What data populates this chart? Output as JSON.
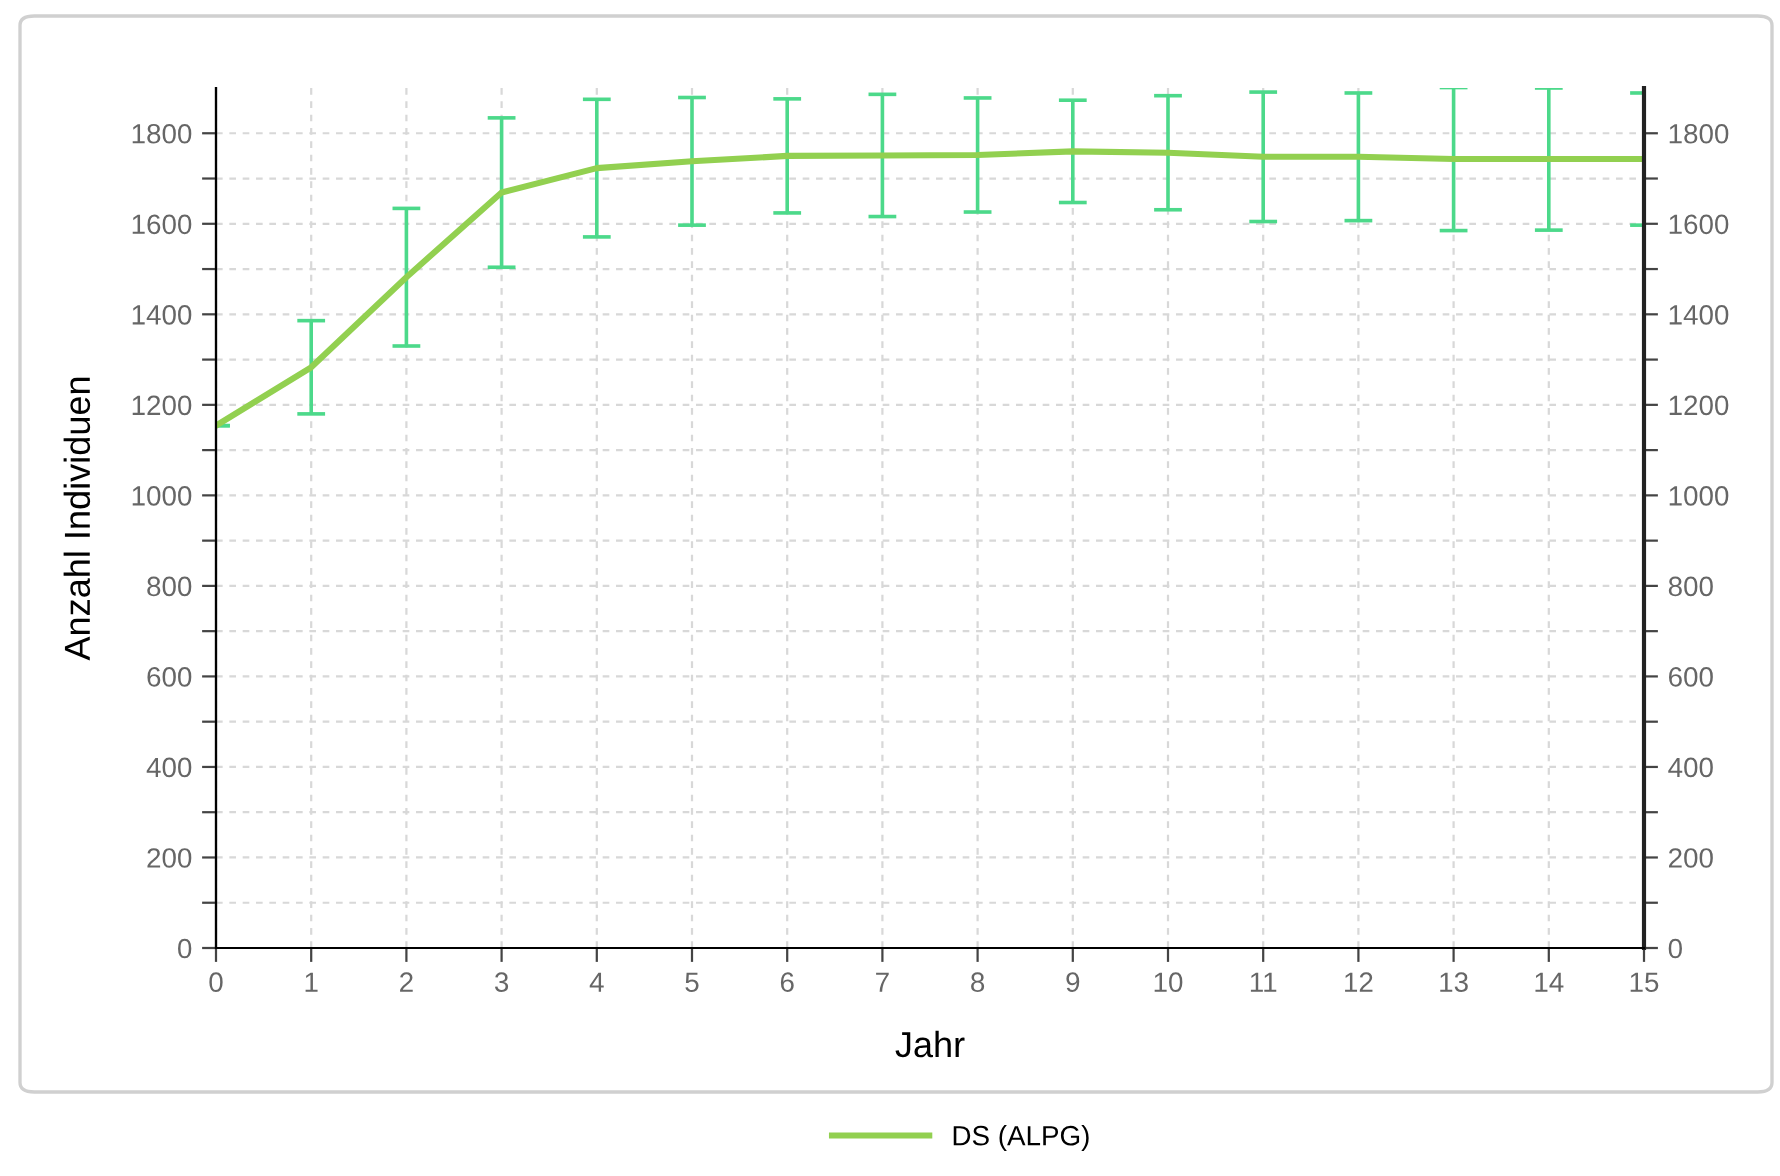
{
  "chart_data": {
    "type": "line",
    "xlabel": "Jahr",
    "ylabel": "Anzahl Individuen",
    "x": [
      0,
      1,
      2,
      3,
      4,
      5,
      6,
      7,
      8,
      9,
      10,
      11,
      12,
      13,
      14,
      15
    ],
    "series": [
      {
        "name": "DS (ALPG)",
        "color": "#92d050",
        "values": [
          1154,
          1283,
          1482,
          1669,
          1723,
          1738,
          1750,
          1751,
          1752,
          1760,
          1757,
          1748,
          1748,
          1743,
          1743,
          1743
        ],
        "errors": [
          0,
          103,
          152,
          165,
          152,
          141,
          126,
          135,
          126,
          113,
          126,
          143,
          141,
          158,
          157,
          146
        ]
      }
    ],
    "xlim": [
      0,
      15
    ],
    "xticks": [
      0,
      1,
      2,
      3,
      4,
      5,
      6,
      7,
      8,
      9,
      10,
      11,
      12,
      13,
      14,
      15
    ],
    "ylim": [
      0,
      1900
    ],
    "yticks": [
      0,
      {
        "value": 100,
        "label": null
      },
      200,
      {
        "value": 300,
        "label": null
      },
      400,
      {
        "value": 500,
        "label": null
      },
      600,
      {
        "value": 700,
        "label": null
      },
      800,
      {
        "value": 900,
        "label": null
      },
      1000,
      {
        "value": 1100,
        "label": null
      },
      1200,
      {
        "value": 1300,
        "label": null
      },
      1400,
      {
        "value": 1500,
        "label": null
      },
      1600,
      {
        "value": 1700,
        "label": null
      },
      1800
    ],
    "y2lim": [
      0,
      1900
    ],
    "y2ticks": [
      0,
      {
        "value": 100,
        "label": null
      },
      200,
      {
        "value": 300,
        "label": null
      },
      400,
      {
        "value": 500,
        "label": null
      },
      600,
      {
        "value": 700,
        "label": null
      },
      800,
      {
        "value": 900,
        "label": null
      },
      1000,
      {
        "value": 1100,
        "label": null
      },
      1200,
      {
        "value": 1300,
        "label": null
      },
      1400,
      {
        "value": 1500,
        "label": null
      },
      1600,
      {
        "value": 1700,
        "label": null
      },
      1800
    ],
    "grid": true,
    "legend": "bottom",
    "marker": "none",
    "line_style": "solid"
  }
}
